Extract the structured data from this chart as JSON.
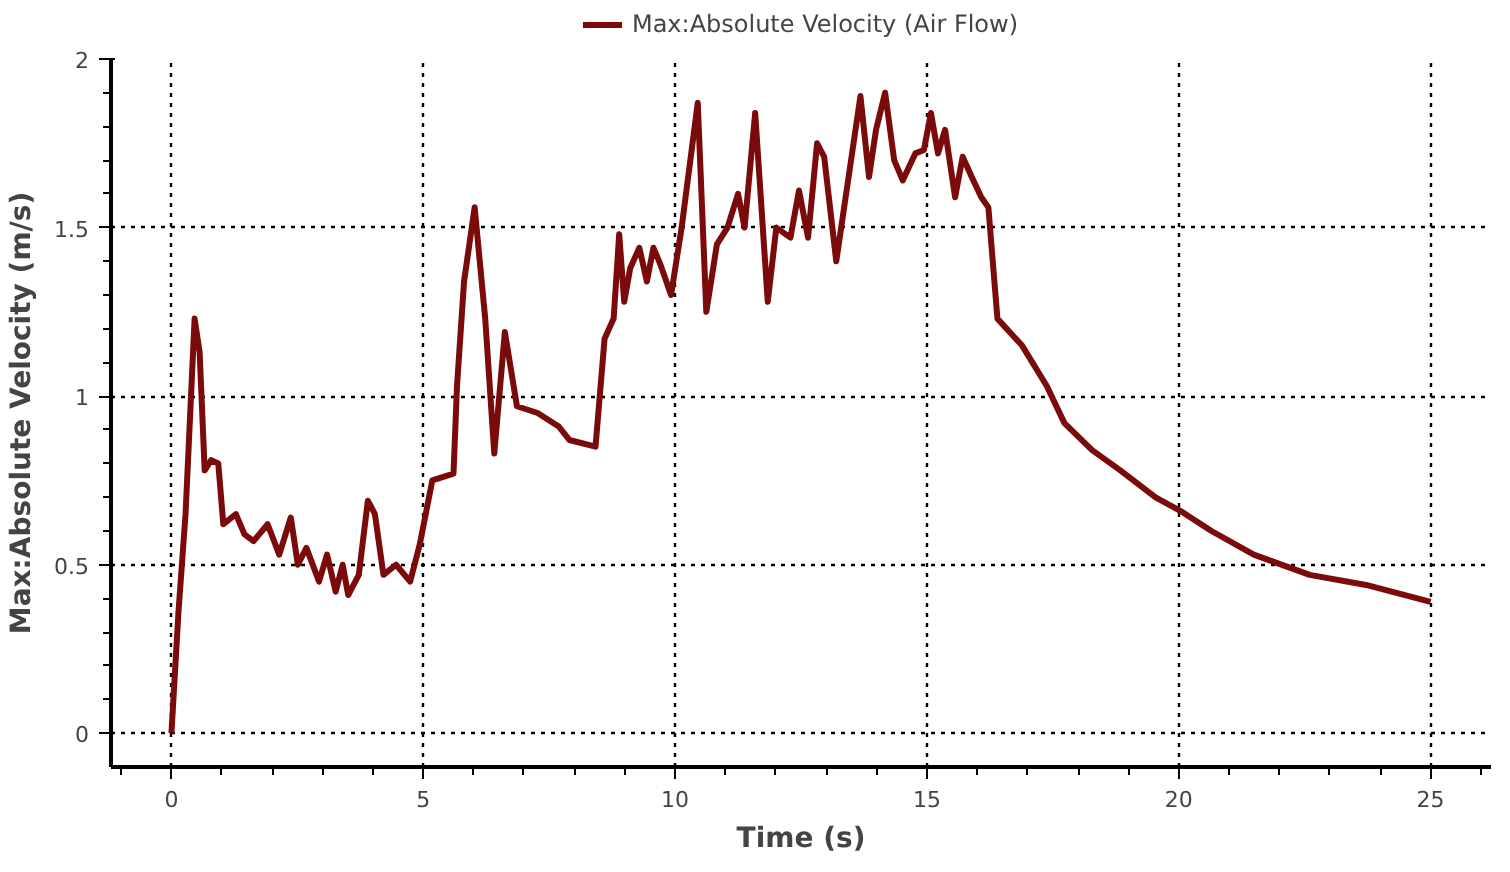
{
  "chart_data": {
    "type": "line",
    "xlabel": "Time (s)",
    "ylabel": "Max:Absolute Velocity (m/s)",
    "legend": "top",
    "grid": true,
    "line_style": "solid",
    "marker": "none",
    "xlim": [
      -1.2,
      26.2
    ],
    "ylim": [
      -0.1,
      2
    ],
    "xticks": [
      {
        "value": -1,
        "label": null
      },
      0,
      {
        "value": 1,
        "label": null
      },
      {
        "value": 2,
        "label": null
      },
      {
        "value": 3,
        "label": null
      },
      {
        "value": 4,
        "label": null
      },
      5,
      {
        "value": 6,
        "label": null
      },
      {
        "value": 7,
        "label": null
      },
      {
        "value": 8,
        "label": null
      },
      {
        "value": 9,
        "label": null
      },
      10,
      {
        "value": 11,
        "label": null
      },
      {
        "value": 12,
        "label": null
      },
      {
        "value": 13,
        "label": null
      },
      {
        "value": 14,
        "label": null
      },
      15,
      {
        "value": 16,
        "label": null
      },
      {
        "value": 17,
        "label": null
      },
      {
        "value": 18,
        "label": null
      },
      {
        "value": 19,
        "label": null
      },
      20,
      {
        "value": 21,
        "label": null
      },
      {
        "value": 22,
        "label": null
      },
      {
        "value": 23,
        "label": null
      },
      {
        "value": 24,
        "label": null
      },
      25,
      {
        "value": 26,
        "label": null
      }
    ],
    "yticks": [
      0,
      {
        "value": 0.1,
        "label": null
      },
      {
        "value": 0.2,
        "label": null
      },
      {
        "value": 0.3,
        "label": null
      },
      {
        "value": 0.4,
        "label": null
      },
      0.5,
      {
        "value": 0.6,
        "label": null
      },
      {
        "value": 0.7,
        "label": null
      },
      {
        "value": 0.8,
        "label": null
      },
      {
        "value": 0.9,
        "label": null
      },
      1,
      {
        "value": 1.1,
        "label": null
      },
      {
        "value": 1.2,
        "label": null
      },
      {
        "value": 1.3,
        "label": null
      },
      {
        "value": 1.4,
        "label": null
      },
      1.5,
      {
        "value": 1.6,
        "label": null
      },
      {
        "value": 1.7,
        "label": null
      },
      {
        "value": 1.8,
        "label": null
      },
      {
        "value": 1.9,
        "label": null
      },
      2
    ],
    "series": [
      {
        "name": "Max:Absolute Velocity (Air Flow)",
        "color": "#7b0a0a",
        "x": [
          0,
          0.14,
          0.28,
          0.46,
          0.56,
          0.66,
          0.79,
          0.93,
          1.03,
          1.28,
          1.45,
          1.63,
          1.91,
          2.14,
          2.37,
          2.51,
          2.68,
          2.93,
          3.09,
          3.26,
          3.4,
          3.51,
          3.72,
          3.9,
          4.04,
          4.21,
          4.46,
          4.74,
          4.93,
          5.18,
          5.6,
          5.67,
          5.81,
          6.02,
          6.23,
          6.41,
          6.62,
          6.86,
          7.27,
          7.69,
          7.9,
          8.42,
          8.6,
          8.78,
          8.89,
          8.99,
          9.11,
          9.29,
          9.44,
          9.57,
          9.71,
          9.92,
          10.13,
          10.45,
          10.62,
          10.83,
          11.04,
          11.25,
          11.38,
          11.59,
          11.84,
          12.01,
          12.29,
          12.46,
          12.64,
          12.82,
          12.96,
          13.2,
          13.68,
          13.85,
          13.99,
          14.17,
          14.35,
          14.52,
          14.77,
          14.94,
          15.08,
          15.22,
          15.36,
          15.56,
          15.71,
          15.89,
          16.08,
          16.22,
          16.4,
          16.89,
          17.38,
          17.73,
          18.28,
          18.84,
          19.54,
          20.03,
          20.65,
          21.49,
          22.6,
          23.72,
          25
        ],
        "values": [
          0,
          0.36,
          0.65,
          1.23,
          1.13,
          0.78,
          0.81,
          0.8,
          0.62,
          0.65,
          0.59,
          0.57,
          0.62,
          0.53,
          0.64,
          0.5,
          0.55,
          0.45,
          0.53,
          0.42,
          0.5,
          0.41,
          0.47,
          0.69,
          0.65,
          0.47,
          0.5,
          0.45,
          0.56,
          0.75,
          0.77,
          1.03,
          1.34,
          1.56,
          1.23,
          0.83,
          1.19,
          0.97,
          0.95,
          0.91,
          0.87,
          0.85,
          1.17,
          1.23,
          1.48,
          1.28,
          1.38,
          1.44,
          1.34,
          1.44,
          1.39,
          1.3,
          1.5,
          1.87,
          1.25,
          1.45,
          1.5,
          1.6,
          1.5,
          1.84,
          1.28,
          1.5,
          1.47,
          1.61,
          1.47,
          1.75,
          1.71,
          1.4,
          1.89,
          1.65,
          1.79,
          1.9,
          1.7,
          1.64,
          1.72,
          1.73,
          1.84,
          1.72,
          1.79,
          1.59,
          1.71,
          1.65,
          1.59,
          1.56,
          1.23,
          1.15,
          1.03,
          0.92,
          0.84,
          0.78,
          0.7,
          0.66,
          0.6,
          0.53,
          0.47,
          0.44,
          0.39
        ]
      }
    ]
  }
}
